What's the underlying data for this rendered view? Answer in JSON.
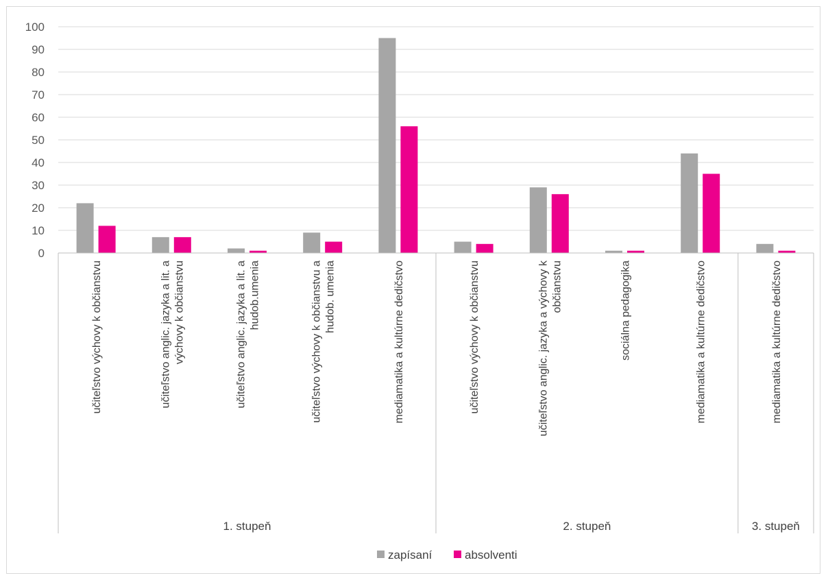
{
  "chart_data": {
    "type": "bar",
    "title": "",
    "xlabel": "",
    "ylabel": "",
    "ylim": [
      0,
      100
    ],
    "yticks": [
      0,
      10,
      20,
      30,
      40,
      50,
      60,
      70,
      80,
      90,
      100
    ],
    "grid": true,
    "legend_position": "bottom",
    "groups": [
      {
        "label": "1. stupeň",
        "categories": [
          [
            "učiteľstvo výchovy k občianstvu"
          ],
          [
            "učiteľstvo anglic. jazyka a lit. a",
            "výchovy k občianstvu"
          ],
          [
            "učiteľstvo anglic. jazyka a lit. a",
            "hudob.umenia"
          ],
          [
            "učiteľstvo výchovy k občianstvu a",
            "hudob. umenia"
          ],
          [
            "mediamatika a kultúrne dedičstvo"
          ]
        ]
      },
      {
        "label": "2. stupeň",
        "categories": [
          [
            "učiteľstvo výchovy k občianstvu"
          ],
          [
            "učiteľstvo anglic. jazyka a výchovy k",
            "občianstvu"
          ],
          [
            "sociálna pedagogika"
          ],
          [
            "mediamatika a kultúrne dedičstvo"
          ]
        ]
      },
      {
        "label": "3. stupeň",
        "categories": [
          [
            "mediamatika a kultúrne dedičstvo"
          ]
        ]
      }
    ],
    "series": [
      {
        "name": "zapísaní",
        "color": "#a6a6a6",
        "values": [
          22,
          7,
          2,
          9,
          95,
          5,
          29,
          1,
          44,
          4
        ]
      },
      {
        "name": "absolventi",
        "color": "#ec008c",
        "values": [
          12,
          7,
          1,
          5,
          56,
          4,
          26,
          1,
          35,
          1
        ]
      }
    ]
  }
}
